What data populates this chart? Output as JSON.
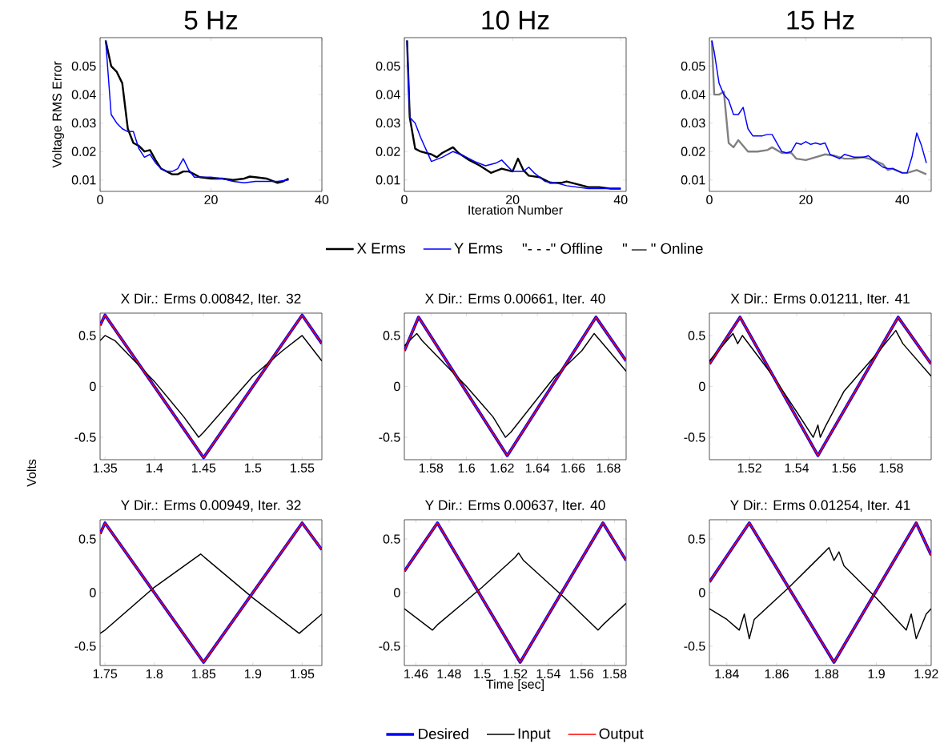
{
  "chart_data": [
    {
      "type": "line",
      "title": "5 Hz",
      "ylabel": "Voltage RMS Error",
      "xlim": [
        0,
        40
      ],
      "ylim": [
        0.006,
        0.06
      ],
      "xticks": [
        0,
        20,
        40
      ],
      "yticks": [
        0.01,
        0.02,
        0.03,
        0.04,
        0.05
      ],
      "series": [
        {
          "color": "#000000",
          "x": [
            1,
            2,
            3,
            4,
            5,
            6,
            7,
            8,
            9,
            10,
            11,
            12,
            13,
            14,
            15,
            16,
            17,
            18,
            20,
            22,
            24,
            26,
            27,
            28,
            30,
            32,
            33,
            34
          ],
          "values": [
            0.059,
            0.05,
            0.048,
            0.044,
            0.028,
            0.023,
            0.022,
            0.02,
            0.0205,
            0.017,
            0.014,
            0.013,
            0.012,
            0.012,
            0.013,
            0.013,
            0.012,
            0.011,
            0.0105,
            0.0105,
            0.01,
            0.0105,
            0.0112,
            0.011,
            0.0105,
            0.009,
            0.0095,
            0.0105
          ]
        },
        {
          "color": "#0000ff",
          "x": [
            1,
            2,
            3,
            4,
            5,
            6,
            7,
            8,
            9,
            10,
            11,
            12,
            13,
            14,
            15,
            16,
            17,
            18,
            20,
            22,
            24,
            26,
            28,
            30,
            32,
            34
          ],
          "values": [
            0.059,
            0.033,
            0.03,
            0.028,
            0.027,
            0.027,
            0.021,
            0.018,
            0.019,
            0.016,
            0.014,
            0.013,
            0.013,
            0.014,
            0.0175,
            0.0135,
            0.011,
            0.011,
            0.011,
            0.0105,
            0.0095,
            0.009,
            0.0095,
            0.0095,
            0.0095,
            0.01
          ]
        }
      ]
    },
    {
      "type": "line",
      "title": "10 Hz",
      "xlabel": "Iteration Number",
      "xlim": [
        0,
        41
      ],
      "ylim": [
        0.006,
        0.06
      ],
      "xticks": [
        0,
        20,
        40
      ],
      "yticks": [
        0.01,
        0.02,
        0.03,
        0.04,
        0.05
      ],
      "legend": "bottom",
      "annotations": [
        "\"- - -\" Offline",
        "\" — \" Online"
      ],
      "series": [
        {
          "name": "X Erms",
          "color": "#000000",
          "x": [
            0.5,
            1,
            2,
            3,
            5,
            6,
            7,
            9,
            10,
            12,
            14,
            16,
            18,
            20,
            21,
            22,
            23,
            25,
            27,
            29,
            30,
            32,
            34,
            36,
            38,
            40
          ],
          "values": [
            0.059,
            0.032,
            0.021,
            0.02,
            0.019,
            0.018,
            0.0195,
            0.0215,
            0.0195,
            0.017,
            0.015,
            0.0125,
            0.014,
            0.013,
            0.0175,
            0.0135,
            0.0115,
            0.011,
            0.009,
            0.009,
            0.0095,
            0.0085,
            0.0075,
            0.0075,
            0.007,
            0.007
          ]
        },
        {
          "name": "Y Erms",
          "color": "#0000ff",
          "x": [
            0.5,
            1,
            2,
            3,
            5,
            7,
            9,
            11,
            13,
            15,
            17,
            18,
            20,
            22,
            23,
            24,
            26,
            28,
            30,
            32,
            34,
            36,
            38,
            40
          ],
          "values": [
            0.059,
            0.032,
            0.03,
            0.025,
            0.0165,
            0.018,
            0.02,
            0.0185,
            0.0165,
            0.015,
            0.016,
            0.017,
            0.013,
            0.013,
            0.0145,
            0.0125,
            0.0095,
            0.009,
            0.008,
            0.0075,
            0.007,
            0.007,
            0.007,
            0.007
          ]
        }
      ]
    },
    {
      "type": "line",
      "title": "15 Hz",
      "xlim": [
        0,
        46
      ],
      "ylim": [
        0.006,
        0.06
      ],
      "xticks": [
        0,
        20,
        40
      ],
      "yticks": [
        0.01,
        0.02,
        0.03,
        0.04,
        0.05
      ],
      "series": [
        {
          "color": "#808080",
          "x": [
            0.5,
            1,
            2,
            3,
            4,
            5,
            6,
            8,
            10,
            12,
            13,
            15,
            17,
            18,
            20,
            22,
            24,
            26,
            28,
            30,
            32,
            34,
            36,
            37,
            38,
            40,
            41,
            43,
            45
          ],
          "values": [
            0.059,
            0.04,
            0.04,
            0.041,
            0.023,
            0.0215,
            0.024,
            0.02,
            0.02,
            0.0205,
            0.0215,
            0.0195,
            0.0195,
            0.0175,
            0.017,
            0.018,
            0.019,
            0.0185,
            0.0175,
            0.0175,
            0.018,
            0.017,
            0.0155,
            0.0135,
            0.014,
            0.0125,
            0.0125,
            0.0135,
            0.012
          ]
        },
        {
          "color": "#0000ff",
          "x": [
            0.5,
            1,
            2,
            3,
            4,
            5,
            6,
            7,
            8,
            9,
            11,
            12,
            13,
            14,
            15,
            16,
            17,
            18,
            19,
            20,
            21,
            22,
            23,
            24,
            25,
            27,
            28,
            30,
            32,
            33,
            34,
            36,
            37,
            38,
            40,
            41,
            42,
            43,
            44,
            45
          ],
          "values": [
            0.059,
            0.055,
            0.044,
            0.04,
            0.038,
            0.033,
            0.033,
            0.0355,
            0.028,
            0.0255,
            0.0255,
            0.026,
            0.026,
            0.023,
            0.02,
            0.0195,
            0.02,
            0.023,
            0.0225,
            0.0235,
            0.0225,
            0.023,
            0.0225,
            0.023,
            0.019,
            0.0175,
            0.019,
            0.018,
            0.018,
            0.0185,
            0.017,
            0.0145,
            0.014,
            0.014,
            0.0125,
            0.0125,
            0.018,
            0.0265,
            0.022,
            0.016
          ]
        }
      ]
    },
    {
      "type": "line",
      "title": "X Dir.: Erms 0.00842, Iter. 32",
      "ylabel": "Volts",
      "xlim": [
        1.345,
        1.57
      ],
      "ylim": [
        -0.72,
        0.72
      ],
      "xticks": [
        1.35,
        1.4,
        1.45,
        1.5,
        1.55
      ],
      "yticks": [
        -0.5,
        0,
        0.5
      ],
      "series": [
        {
          "color": "#0000ff",
          "x": [
            1.345,
            1.35,
            1.45,
            1.55,
            1.57
          ],
          "values": [
            0.6,
            0.7,
            -0.7,
            0.7,
            0.42
          ]
        },
        {
          "color": "#000000",
          "x": [
            1.345,
            1.35,
            1.36,
            1.4,
            1.43,
            1.445,
            1.45,
            1.5,
            1.53,
            1.55,
            1.57
          ],
          "values": [
            0.45,
            0.5,
            0.45,
            0.05,
            -0.3,
            -0.5,
            -0.45,
            0.1,
            0.35,
            0.5,
            0.25
          ]
        },
        {
          "color": "#ff0000",
          "x": [
            1.345,
            1.35,
            1.45,
            1.55,
            1.57
          ],
          "values": [
            0.6,
            0.7,
            -0.7,
            0.7,
            0.42
          ]
        }
      ]
    },
    {
      "type": "line",
      "title": "X Dir.: Erms 0.00661, Iter. 40",
      "xlim": [
        1.565,
        1.69
      ],
      "ylim": [
        -0.72,
        0.72
      ],
      "xticks": [
        1.58,
        1.6,
        1.62,
        1.64,
        1.66,
        1.68
      ],
      "yticks": [
        -0.5,
        0,
        0.5
      ],
      "series": [
        {
          "color": "#0000ff",
          "x": [
            1.565,
            1.573,
            1.623,
            1.673,
            1.69
          ],
          "values": [
            0.35,
            0.68,
            -0.68,
            0.68,
            0.25
          ]
        },
        {
          "color": "#000000",
          "x": [
            1.565,
            1.572,
            1.575,
            1.6,
            1.615,
            1.622,
            1.625,
            1.65,
            1.665,
            1.672,
            1.69
          ],
          "values": [
            0.4,
            0.52,
            0.45,
            0.0,
            -0.3,
            -0.5,
            -0.45,
            0.1,
            0.35,
            0.52,
            0.15
          ]
        },
        {
          "color": "#ff0000",
          "x": [
            1.565,
            1.573,
            1.623,
            1.673,
            1.69
          ],
          "values": [
            0.35,
            0.68,
            -0.68,
            0.68,
            0.25
          ]
        }
      ]
    },
    {
      "type": "line",
      "title": "X Dir.: Erms 0.01211, Iter. 41",
      "xlim": [
        1.503,
        1.597
      ],
      "ylim": [
        -0.72,
        0.72
      ],
      "xticks": [
        1.52,
        1.54,
        1.56,
        1.58
      ],
      "yticks": [
        -0.5,
        0,
        0.5
      ],
      "series": [
        {
          "color": "#0000ff",
          "x": [
            1.503,
            1.516,
            1.549,
            1.583,
            1.597
          ],
          "values": [
            0.22,
            0.68,
            -0.68,
            0.68,
            0.22
          ]
        },
        {
          "color": "#000000",
          "x": [
            1.503,
            1.513,
            1.515,
            1.517,
            1.53,
            1.54,
            1.547,
            1.549,
            1.55,
            1.552,
            1.56,
            1.575,
            1.582,
            1.585,
            1.597
          ],
          "values": [
            0.25,
            0.52,
            0.42,
            0.5,
            0.1,
            -0.25,
            -0.5,
            -0.38,
            -0.5,
            -0.4,
            -0.05,
            0.35,
            0.55,
            0.42,
            0.1
          ]
        },
        {
          "color": "#ff0000",
          "x": [
            1.503,
            1.516,
            1.549,
            1.583,
            1.597
          ],
          "values": [
            0.22,
            0.68,
            -0.68,
            0.68,
            0.22
          ]
        }
      ]
    },
    {
      "type": "line",
      "title": "Y Dir.: Erms 0.00949, Iter. 32",
      "xlim": [
        1.745,
        1.97
      ],
      "ylim": [
        -0.68,
        0.68
      ],
      "xticks": [
        1.75,
        1.8,
        1.85,
        1.9,
        1.95
      ],
      "yticks": [
        -0.5,
        0,
        0.5
      ],
      "series": [
        {
          "color": "#0000ff",
          "x": [
            1.745,
            1.75,
            1.85,
            1.95,
            1.97
          ],
          "values": [
            0.55,
            0.65,
            -0.65,
            0.65,
            0.4
          ]
        },
        {
          "color": "#000000",
          "x": [
            1.745,
            1.75,
            1.8,
            1.847,
            1.9,
            1.947,
            1.97
          ],
          "values": [
            -0.38,
            -0.35,
            0.05,
            0.36,
            -0.05,
            -0.38,
            -0.2
          ]
        },
        {
          "color": "#ff0000",
          "x": [
            1.745,
            1.75,
            1.85,
            1.95,
            1.97
          ],
          "values": [
            0.55,
            0.65,
            -0.65,
            0.65,
            0.4
          ]
        }
      ]
    },
    {
      "type": "line",
      "title": "Y Dir.: Erms 0.00637, Iter. 40",
      "xlabel": "Time [sec]",
      "xlim": [
        1.453,
        1.587
      ],
      "ylim": [
        -0.68,
        0.68
      ],
      "xticks": [
        1.46,
        1.48,
        1.5,
        1.52,
        1.54,
        1.56,
        1.58
      ],
      "yticks": [
        -0.5,
        0,
        0.5
      ],
      "legend": "bottom",
      "series": [
        {
          "name": "Desired",
          "color": "#0000ff",
          "x": [
            1.453,
            1.473,
            1.523,
            1.573,
            1.587
          ],
          "values": [
            0.2,
            0.65,
            -0.65,
            0.65,
            0.3
          ]
        },
        {
          "name": "Input",
          "color": "#000000",
          "x": [
            1.453,
            1.47,
            1.473,
            1.5,
            1.52,
            1.522,
            1.525,
            1.55,
            1.57,
            1.573,
            1.587
          ],
          "values": [
            -0.15,
            -0.35,
            -0.3,
            0.05,
            0.33,
            0.37,
            0.3,
            -0.05,
            -0.35,
            -0.3,
            -0.1
          ]
        },
        {
          "name": "Output",
          "color": "#ff0000",
          "x": [
            1.453,
            1.473,
            1.523,
            1.573,
            1.587
          ],
          "values": [
            0.2,
            0.65,
            -0.65,
            0.65,
            0.3
          ]
        }
      ]
    },
    {
      "type": "line",
      "title": "Y Dir.: Erms 0.01254, Iter. 41",
      "xlim": [
        1.833,
        1.922
      ],
      "ylim": [
        -0.68,
        0.68
      ],
      "xticks": [
        1.84,
        1.86,
        1.88,
        1.9,
        1.92
      ],
      "yticks": [
        -0.5,
        0,
        0.5
      ],
      "series": [
        {
          "color": "#0000ff",
          "x": [
            1.833,
            1.849,
            1.883,
            1.916,
            1.922
          ],
          "values": [
            0.1,
            0.65,
            -0.65,
            0.65,
            0.35
          ]
        },
        {
          "color": "#000000",
          "x": [
            1.833,
            1.84,
            1.845,
            1.847,
            1.849,
            1.851,
            1.865,
            1.878,
            1.881,
            1.883,
            1.885,
            1.887,
            1.9,
            1.912,
            1.914,
            1.916,
            1.92,
            1.922
          ],
          "values": [
            -0.15,
            -0.25,
            -0.35,
            -0.2,
            -0.43,
            -0.25,
            0.05,
            0.35,
            0.42,
            0.3,
            0.38,
            0.25,
            -0.05,
            -0.35,
            -0.2,
            -0.43,
            -0.2,
            -0.15
          ]
        },
        {
          "color": "#ff0000",
          "x": [
            1.833,
            1.849,
            1.883,
            1.916,
            1.922
          ],
          "values": [
            0.1,
            0.65,
            -0.65,
            0.65,
            0.35
          ]
        }
      ]
    }
  ]
}
